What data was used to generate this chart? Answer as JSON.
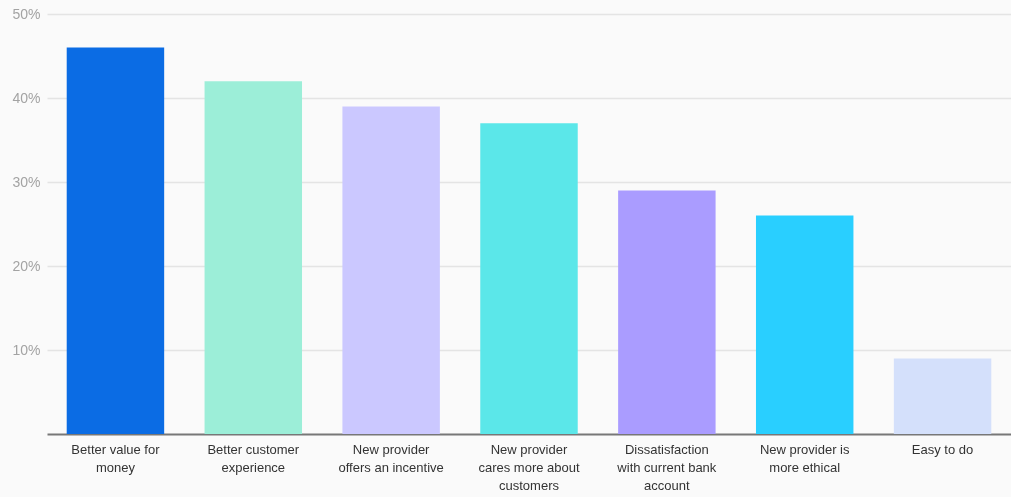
{
  "chart_data": {
    "type": "bar",
    "categories": [
      "Better value for money",
      "Better customer experience",
      "New provider offers an incentive",
      "New provider cares more about customers",
      "Dissatisfaction with current bank account",
      "New provider is more ethical",
      "Easy to do"
    ],
    "values": [
      46,
      42,
      39,
      37,
      29,
      26,
      9
    ],
    "colors": [
      "#0b6ce4",
      "#9ceed8",
      "#cbc8ff",
      "#5be7e9",
      "#aa9cff",
      "#29cfff",
      "#d4e0fb"
    ],
    "ylim": [
      0,
      50
    ],
    "yticks": [
      {
        "value": 10,
        "label": "10%"
      },
      {
        "value": 20,
        "label": "20%"
      },
      {
        "value": 30,
        "label": "30%"
      },
      {
        "value": 40,
        "label": "40%"
      },
      {
        "value": 50,
        "label": "50%"
      }
    ],
    "grid": "y"
  }
}
